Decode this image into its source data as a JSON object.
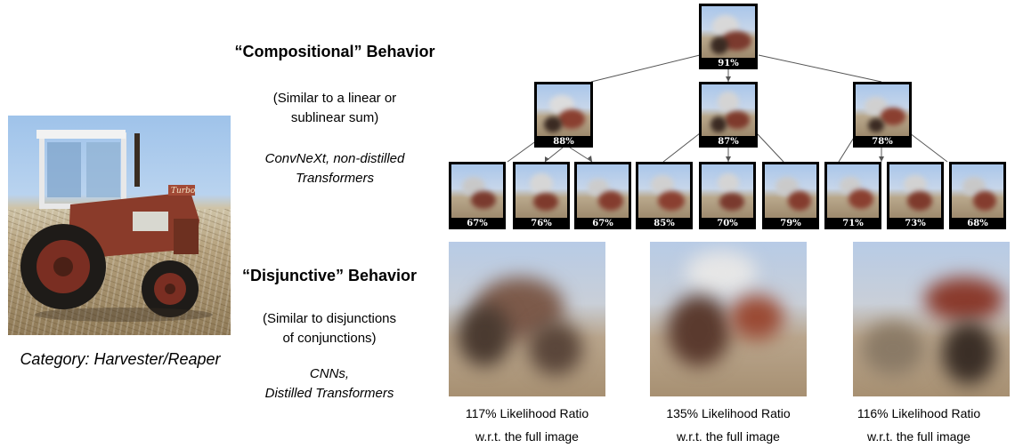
{
  "left_panel": {
    "category_caption": "Category: Harvester/Reaper",
    "tractor_model_text": "Turbo"
  },
  "compositional": {
    "heading": "“Compositional” Behavior",
    "desc_line1": "(Similar to a linear or",
    "desc_line2": "sublinear sum)",
    "models_line1": "ConvNeXt, non-distilled",
    "models_line2": "Transformers"
  },
  "disjunctive": {
    "heading": "“Disjunctive” Behavior",
    "desc_line1": "(Similar to disjunctions",
    "desc_line2": "of conjunctions)",
    "models_line1": "CNNs,",
    "models_line2": "Distilled Transformers"
  },
  "tree": {
    "root": "91%",
    "level1": [
      "88%",
      "87%",
      "78%"
    ],
    "level2": [
      "67%",
      "76%",
      "67%",
      "85%",
      "70%",
      "79%",
      "71%",
      "73%",
      "68%"
    ]
  },
  "disjunctive_examples": [
    {
      "ratio": "117% Likelihood Ratio",
      "ref": "w.r.t. the full image"
    },
    {
      "ratio": "135% Likelihood Ratio",
      "ref": "w.r.t. the full image"
    },
    {
      "ratio": "116% Likelihood Ratio",
      "ref": "w.r.t. the full image"
    }
  ]
}
